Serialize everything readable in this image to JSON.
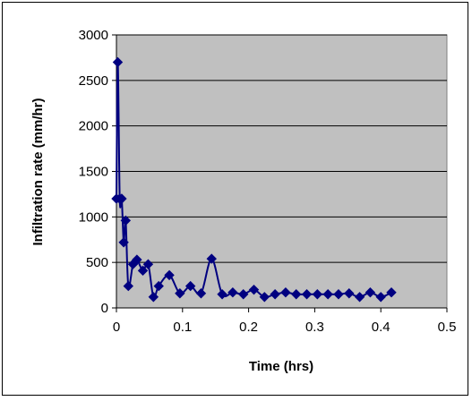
{
  "chart_data": {
    "type": "scatter",
    "xlabel": "Time (hrs)",
    "ylabel": "Infiltration rate (mm/hr)",
    "xlim": [
      0,
      0.5
    ],
    "ylim": [
      0,
      3000
    ],
    "x_ticks": [
      "0",
      "0.1",
      "0.2",
      "0.3",
      "0.4",
      "0.5"
    ],
    "y_ticks": [
      "0",
      "500",
      "1000",
      "1500",
      "2000",
      "2500",
      "3000"
    ],
    "grid": "horizontal",
    "plot_background": "#c0c0c0",
    "series": [
      {
        "color": "#000080",
        "marker": "diamond",
        "line": "smoothed",
        "points": [
          {
            "x": 0.0,
            "y": 1200
          },
          {
            "x": 0.002,
            "y": 2700
          },
          {
            "x": 0.005,
            "y": 1200
          },
          {
            "x": 0.008,
            "y": 1200
          },
          {
            "x": 0.011,
            "y": 720
          },
          {
            "x": 0.014,
            "y": 960
          },
          {
            "x": 0.018,
            "y": 240
          },
          {
            "x": 0.025,
            "y": 480
          },
          {
            "x": 0.031,
            "y": 530
          },
          {
            "x": 0.04,
            "y": 410
          },
          {
            "x": 0.048,
            "y": 480
          },
          {
            "x": 0.056,
            "y": 120
          },
          {
            "x": 0.064,
            "y": 240
          },
          {
            "x": 0.08,
            "y": 360
          },
          {
            "x": 0.096,
            "y": 160
          },
          {
            "x": 0.112,
            "y": 240
          },
          {
            "x": 0.128,
            "y": 160
          },
          {
            "x": 0.144,
            "y": 540
          },
          {
            "x": 0.16,
            "y": 150
          },
          {
            "x": 0.176,
            "y": 170
          },
          {
            "x": 0.192,
            "y": 150
          },
          {
            "x": 0.208,
            "y": 200
          },
          {
            "x": 0.224,
            "y": 120
          },
          {
            "x": 0.24,
            "y": 150
          },
          {
            "x": 0.256,
            "y": 170
          },
          {
            "x": 0.272,
            "y": 150
          },
          {
            "x": 0.288,
            "y": 150
          },
          {
            "x": 0.304,
            "y": 150
          },
          {
            "x": 0.32,
            "y": 150
          },
          {
            "x": 0.336,
            "y": 150
          },
          {
            "x": 0.352,
            "y": 160
          },
          {
            "x": 0.368,
            "y": 120
          },
          {
            "x": 0.384,
            "y": 170
          },
          {
            "x": 0.4,
            "y": 120
          },
          {
            "x": 0.416,
            "y": 170
          }
        ]
      }
    ]
  }
}
